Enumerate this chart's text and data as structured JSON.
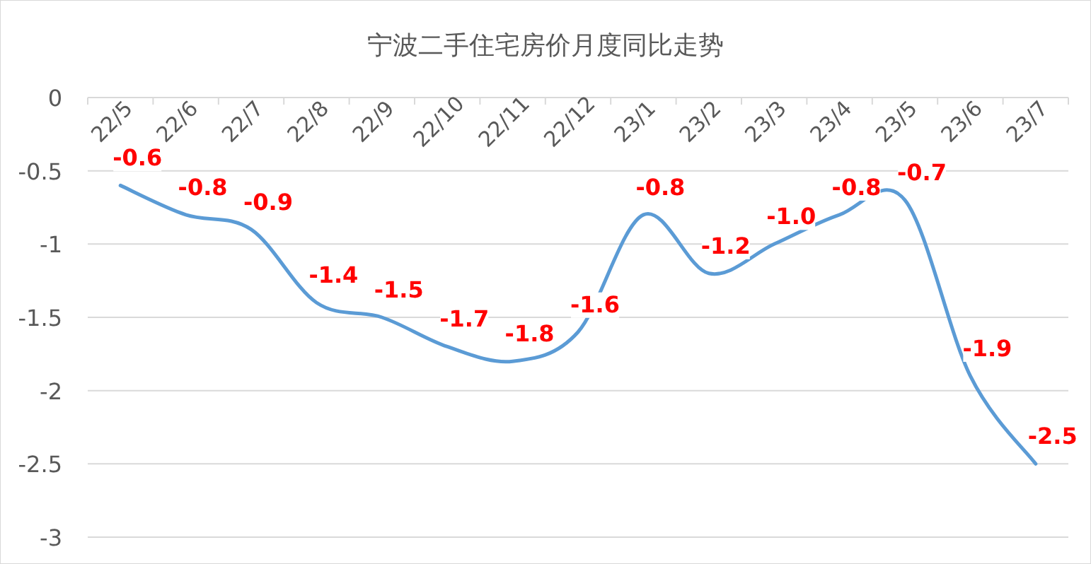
{
  "chart_data": {
    "type": "line",
    "title": "宁波二手住宅房价月度同比走势",
    "categories": [
      "22/5",
      "22/6",
      "22/7",
      "22/8",
      "22/9",
      "22/10",
      "22/11",
      "22/12",
      "23/1",
      "23/2",
      "23/3",
      "23/4",
      "23/5",
      "23/6",
      "23/7"
    ],
    "series": [
      {
        "color": "#5b9bd5",
        "values": [
          -0.6,
          -0.8,
          -0.9,
          -1.4,
          -1.5,
          -1.7,
          -1.8,
          -1.6,
          -0.8,
          -1.2,
          -1.0,
          -0.8,
          -0.7,
          -1.9,
          -2.5
        ],
        "value_labels": [
          "-0.6",
          "-0.8",
          "-0.9",
          "-1.4",
          "-1.5",
          "-1.7",
          "-1.8",
          "-1.6",
          "-0.8",
          "-1.2",
          "-1.0",
          "-0.8",
          "-0.7",
          "-1.9",
          "-2.5"
        ]
      }
    ],
    "ylim": [
      -3,
      0
    ],
    "yticks": [
      0,
      -0.5,
      -1,
      -1.5,
      -2,
      -2.5,
      -3
    ],
    "grid": "y",
    "marker": "none",
    "line_style": "solid"
  }
}
